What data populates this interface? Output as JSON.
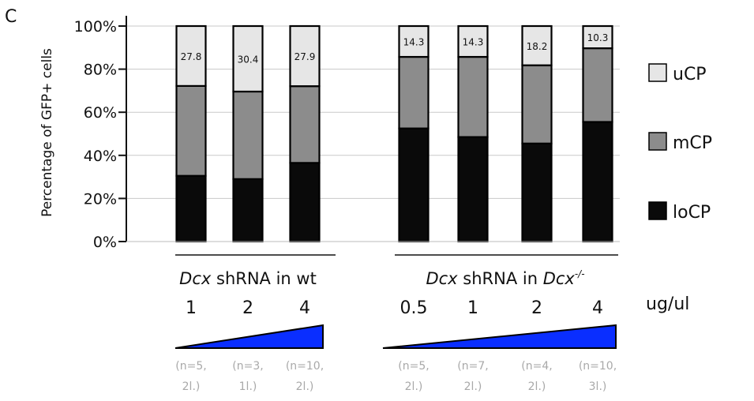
{
  "panel_letter": "C",
  "chart_data": {
    "type": "bar",
    "stacked": true,
    "ylabel": "Percentage of GFP+ cells",
    "ylim": [
      0,
      100
    ],
    "yticks": [
      "0%",
      "20%",
      "40%",
      "60%",
      "80%",
      "100%"
    ],
    "grid": true,
    "legend_position": "right",
    "groups": [
      {
        "label_italic": "Dcx",
        "label_rest": " shRNA in wt",
        "label_sup_base": "",
        "label_sup": "",
        "bars": [
          {
            "dose": "1",
            "n_line1": "(n=5,",
            "n_line2": "2l.)"
          },
          {
            "dose": "2",
            "n_line1": "(n=3,",
            "n_line2": "1l.)"
          },
          {
            "dose": "4",
            "n_line1": "(n=10,",
            "n_line2": "2l.)"
          }
        ]
      },
      {
        "label_italic": "Dcx",
        "label_rest": " shRNA in ",
        "label_sup_base": "Dcx",
        "label_sup": "-/-",
        "bars": [
          {
            "dose": "0.5",
            "n_line1": "(n=5,",
            "n_line2": "2l.)"
          },
          {
            "dose": "1",
            "n_line1": "(n=7,",
            "n_line2": "2l.)"
          },
          {
            "dose": "2",
            "n_line1": "(n=4,",
            "n_line2": "2l.)"
          },
          {
            "dose": "4",
            "n_line1": "(n=10,",
            "n_line2": "3l.)"
          }
        ]
      }
    ],
    "dose_unit": "ug/ul",
    "series": [
      {
        "name": "loCP",
        "color": "#0a0a0a",
        "values": [
          30.5,
          29.0,
          36.5,
          52.5,
          48.5,
          45.5,
          55.5
        ]
      },
      {
        "name": "mCP",
        "color": "#8c8c8c",
        "values": [
          41.7,
          40.6,
          35.6,
          33.2,
          37.2,
          36.3,
          34.2
        ]
      },
      {
        "name": "uCP",
        "color": "#e6e6e6",
        "values": [
          27.8,
          30.4,
          27.9,
          14.3,
          14.3,
          18.2,
          10.3
        ]
      }
    ],
    "data_labels": [
      "27.8",
      "30.4",
      "27.9",
      "14.3",
      "14.3",
      "18.2",
      "10.3"
    ],
    "ramp_color": "#0a2eff"
  }
}
